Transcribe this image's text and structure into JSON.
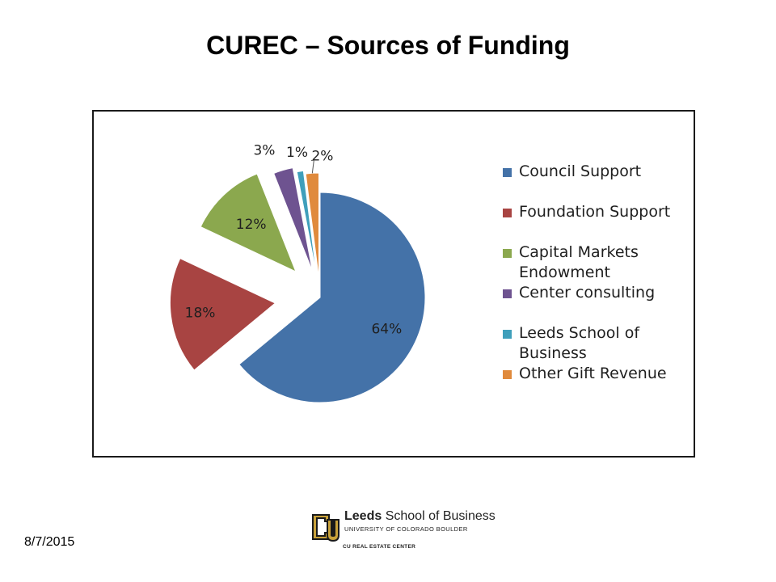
{
  "slide": {
    "title": "CUREC – Sources of Funding",
    "date": "8/7/2015"
  },
  "logo": {
    "name_bold": "Leeds",
    "name_rest": " School of Business",
    "subtitle": "UNIVERSITY OF COLORADO BOULDER",
    "center": "CU REAL ESTATE CENTER",
    "icon": "cu-logo-icon",
    "color": "#c9a23a"
  },
  "chart_data": {
    "type": "pie",
    "title": "",
    "legend_position": "right",
    "exploded": true,
    "slices": [
      {
        "label": "Council Support",
        "value": 64,
        "data_label": "64%",
        "color": "#4472a8"
      },
      {
        "label": "Foundation Support",
        "value": 18,
        "data_label": "18%",
        "color": "#a84442"
      },
      {
        "label": "Capital Markets Endowment",
        "value": 12,
        "data_label": "12%",
        "color": "#8ba84e"
      },
      {
        "label": "Center consulting",
        "value": 3,
        "data_label": "3%",
        "color": "#6e5390"
      },
      {
        "label": "Leeds School of Business",
        "value": 1,
        "data_label": "1%",
        "color": "#3f9fbb"
      },
      {
        "label": "Other Gift Revenue",
        "value": 2,
        "data_label": "2%",
        "color": "#e08a3c"
      }
    ]
  }
}
